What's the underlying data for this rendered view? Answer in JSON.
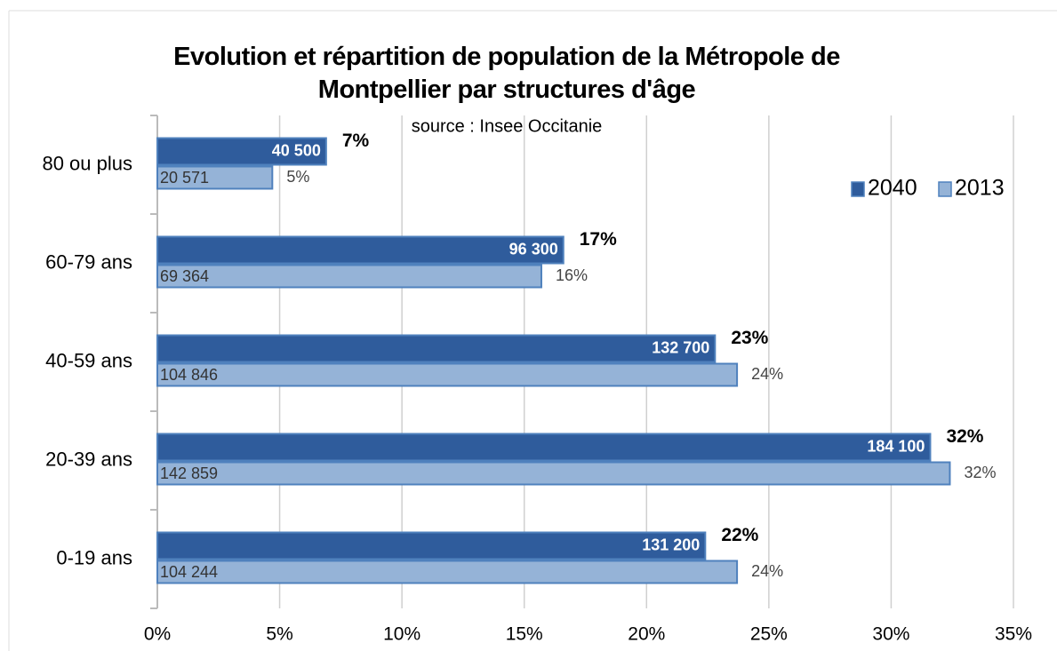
{
  "chart_data": {
    "type": "hbar",
    "title": "Evolution et répartition de population de la Métropole de Montpellier par structures d'âge",
    "subtitle": "source : Insee Occitanie",
    "categories": [
      "80 ou plus",
      "60-79 ans",
      "40-59 ans",
      "20-39 ans",
      "0-19 ans"
    ],
    "series": [
      {
        "name": "2040",
        "color": "#2f5c9c",
        "values": [
          6.9,
          16.6,
          22.8,
          31.6,
          22.4
        ],
        "value_labels": [
          "7%",
          "17%",
          "23%",
          "32%",
          "22%"
        ],
        "count_labels": [
          "40 500",
          "96 300",
          "132 700",
          "184 100",
          "131 200"
        ]
      },
      {
        "name": "2013",
        "color": "#95b3d7",
        "values": [
          4.7,
          15.7,
          23.7,
          32.4,
          23.7
        ],
        "value_labels": [
          "5%",
          "16%",
          "24%",
          "32%",
          "24%"
        ],
        "count_labels": [
          "20 571",
          "69 364",
          "104 846",
          "142 859",
          "104 244"
        ]
      }
    ],
    "xlim": [
      0,
      35
    ],
    "xticks": [
      {
        "value": 0,
        "label": "0%"
      },
      {
        "value": 5,
        "label": "5%"
      },
      {
        "value": 10,
        "label": "10%"
      },
      {
        "value": 15,
        "label": "15%"
      },
      {
        "value": 20,
        "label": "20%"
      },
      {
        "value": 25,
        "label": "25%"
      },
      {
        "value": 30,
        "label": "30%"
      },
      {
        "value": 35,
        "label": "35%"
      }
    ],
    "grid": true,
    "legend": "top-right"
  }
}
